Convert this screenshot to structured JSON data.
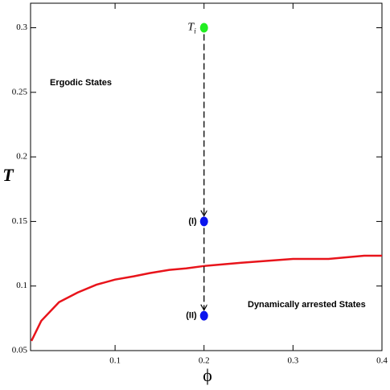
{
  "chart_data": {
    "type": "line",
    "xlabel": "ϕ",
    "ylabel": "T",
    "xlim": [
      0.005,
      0.4
    ],
    "ylim": [
      0.05,
      0.319
    ],
    "xticks": [
      0.1,
      0.2,
      0.3,
      0.4
    ],
    "yticks": [
      0.05,
      0.1,
      0.15,
      0.2,
      0.25,
      0.3
    ],
    "series": [
      {
        "color": "#e8141b",
        "x": [
          0.006,
          0.017,
          0.037,
          0.058,
          0.079,
          0.1,
          0.121,
          0.139,
          0.161,
          0.18,
          0.2,
          0.242,
          0.3,
          0.34,
          0.38,
          0.4
        ],
        "values": [
          0.0575,
          0.073,
          0.0875,
          0.095,
          0.101,
          0.105,
          0.1075,
          0.11,
          0.1125,
          0.1137,
          0.1155,
          0.118,
          0.121,
          0.121,
          0.1235,
          0.1235
        ]
      }
    ],
    "points": [
      {
        "x": 0.2,
        "y": 0.3,
        "color": "#22ee22",
        "label": "T",
        "label_sub": "i"
      },
      {
        "x": 0.2,
        "y": 0.15,
        "color": "#0a14ee",
        "label": "(I)"
      },
      {
        "x": 0.2,
        "y": 0.077,
        "color": "#0a14ee",
        "label": "(II)"
      }
    ],
    "annotations": [
      "Ergodic States",
      "Dynamically arrested States"
    ]
  }
}
